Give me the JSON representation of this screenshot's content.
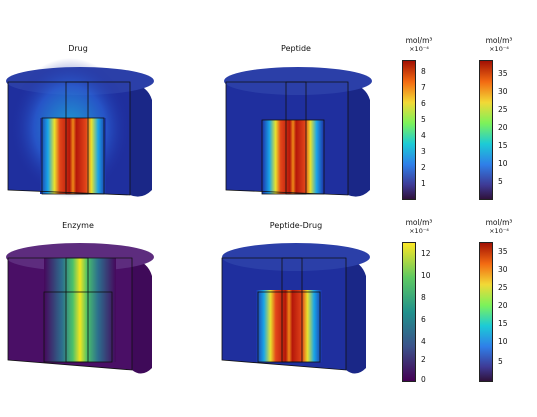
{
  "plots": [
    {
      "title": "Drug",
      "colormap": "rainbow"
    },
    {
      "title": "Peptide",
      "colormap": "rainbow"
    },
    {
      "title": "Enzyme",
      "colormap": "viridis"
    },
    {
      "title": "Peptide-Drug",
      "colormap": "rainbow"
    }
  ],
  "colorbars": [
    {
      "unit": "mol/m³",
      "scale": "×10⁻⁴",
      "colormap": "rainbow",
      "ticks": [
        "8",
        "7",
        "6",
        "5",
        "4",
        "3",
        "2",
        "1"
      ]
    },
    {
      "unit": "mol/m³",
      "scale": "×10⁻⁴",
      "colormap": "rainbow",
      "ticks": [
        "35",
        "30",
        "25",
        "20",
        "15",
        "10",
        "5"
      ]
    },
    {
      "unit": "mol/m³",
      "scale": "×10⁻⁴",
      "colormap": "viridis",
      "ticks": [
        "12",
        "10",
        "8",
        "6",
        "4",
        "2",
        "0"
      ]
    },
    {
      "unit": "mol/m³",
      "scale": "×10⁻⁴",
      "colormap": "rainbow",
      "ticks": [
        "35",
        "30",
        "25",
        "20",
        "15",
        "10",
        "5"
      ]
    }
  ]
}
